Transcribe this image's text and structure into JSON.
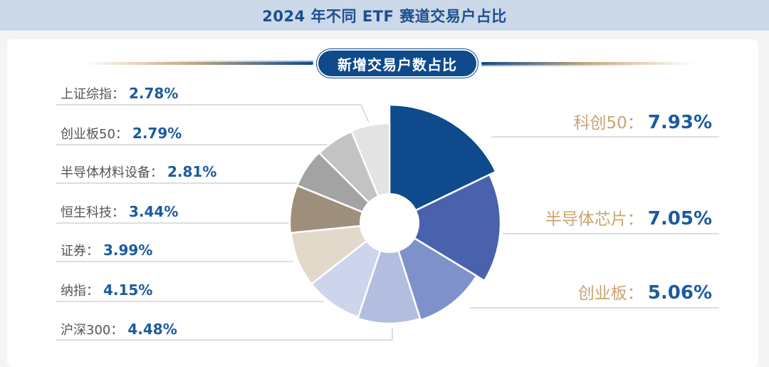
{
  "header": {
    "title": "2024 年不同 ETF 赛道交易户占比"
  },
  "section": {
    "pill_label": "新增交易户数占比"
  },
  "chart_data": {
    "type": "pie",
    "variant": "rose-donut",
    "title": "2024 年不同 ETF 赛道交易户占比",
    "subtitle": "新增交易户数占比",
    "unit": "%",
    "categories": [
      "科创50",
      "半导体芯片",
      "创业板",
      "沪深300",
      "纳指",
      "证券",
      "恒生科技",
      "半导体材料设备",
      "创业板50",
      "上证综指"
    ],
    "values": [
      7.93,
      7.05,
      5.06,
      4.48,
      4.15,
      3.99,
      3.44,
      2.81,
      2.79,
      2.78
    ],
    "value_labels": [
      "7.93%",
      "7.05%",
      "5.06%",
      "4.48%",
      "4.15%",
      "3.99%",
      "3.44%",
      "2.81%",
      "2.79%",
      "2.78%"
    ],
    "colors": [
      "#0e4a8c",
      "#4a62ad",
      "#7e91cb",
      "#b2bde0",
      "#cdd5ec",
      "#e2d9cb",
      "#9e8e7c",
      "#a3a3a3",
      "#c3c3c3",
      "#e3e3e3"
    ],
    "outer_radii": [
      166,
      156,
      143,
      141,
      139,
      139,
      140,
      140,
      139,
      140
    ],
    "inner_radius": 42,
    "center": [
      547,
      313
    ],
    "start_angle_deg": 0,
    "direction": "clockwise",
    "legend_position": "leader-line labels left and right"
  },
  "labels": {
    "right": [
      {
        "name": "科创50",
        "colon": "：",
        "value": "7.93%"
      },
      {
        "name": "半导体芯片",
        "colon": "：",
        "value": "7.05%"
      },
      {
        "name": "创业板",
        "colon": "：",
        "value": "5.06%"
      }
    ],
    "left": [
      {
        "name": "上证综指",
        "colon": "：",
        "value": "2.78%"
      },
      {
        "name": "创业板50",
        "colon": "：",
        "value": "2.79%"
      },
      {
        "name": "半导体材料设备",
        "colon": "：",
        "value": "2.81%"
      },
      {
        "name": "恒生科技",
        "colon": "：",
        "value": "3.44%"
      },
      {
        "name": "证券",
        "colon": "：",
        "value": "3.99%"
      },
      {
        "name": "纳指",
        "colon": "：",
        "value": "4.15%"
      },
      {
        "name": "沪深300",
        "colon": "：",
        "value": "4.48%"
      }
    ]
  }
}
